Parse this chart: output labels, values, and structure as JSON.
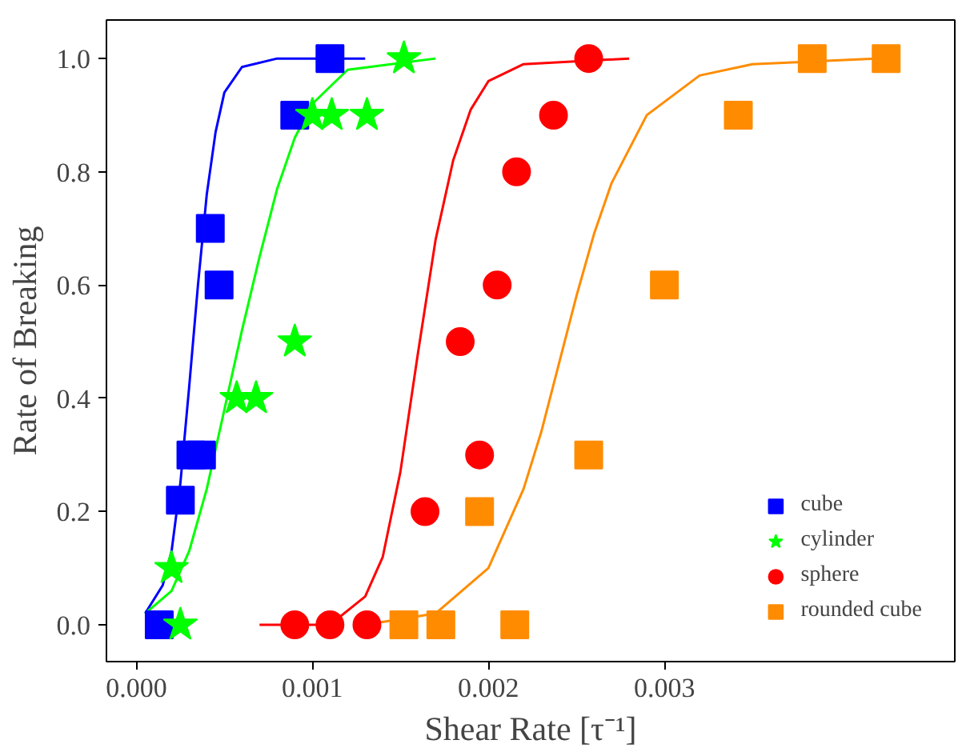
{
  "chart_data": {
    "type": "scatter",
    "xlabel": "Shear Rate [τ⁻¹]",
    "ylabel": "Rate of Breaking",
    "xlim": [
      -0.00017,
      0.00465
    ],
    "ylim": [
      -0.065,
      1.068
    ],
    "xticks": [
      {
        "value": 0,
        "label": "0.000"
      },
      {
        "value": 0.001,
        "label": "0.001"
      },
      {
        "value": 0.002,
        "label": "0.002"
      },
      {
        "value": 0.003,
        "label": "0.003"
      }
    ],
    "yticks": [
      {
        "value": 0,
        "label": "0.0"
      },
      {
        "value": 0.2,
        "label": "0.2"
      },
      {
        "value": 0.4,
        "label": "0.4"
      },
      {
        "value": 0.6,
        "label": "0.6"
      },
      {
        "value": 0.8,
        "label": "0.8"
      },
      {
        "value": 1.0,
        "label": "1.0"
      }
    ],
    "grid": false,
    "legend": "bottom right",
    "series": [
      {
        "type": "line",
        "color": "#0000ff",
        "x": [
          5e-05,
          0.00015,
          0.0002,
          0.00025,
          0.0003,
          0.00035,
          0.0004,
          0.00045,
          0.0005,
          0.0006,
          0.0008,
          0.0013
        ],
        "values": [
          0.02,
          0.07,
          0.13,
          0.25,
          0.42,
          0.6,
          0.76,
          0.87,
          0.94,
          0.985,
          1.0,
          1.0
        ]
      },
      {
        "type": "line",
        "color": "#00ff00",
        "x": [
          5e-05,
          0.0002,
          0.0003,
          0.0004,
          0.0005,
          0.0006,
          0.0007,
          0.0008,
          0.0009,
          0.001,
          0.0012,
          0.0017
        ],
        "values": [
          0.02,
          0.06,
          0.13,
          0.24,
          0.38,
          0.52,
          0.65,
          0.77,
          0.86,
          0.92,
          0.98,
          1.0
        ]
      },
      {
        "type": "line",
        "color": "#ff0000",
        "x": [
          0.0007,
          0.0011,
          0.0013,
          0.0014,
          0.0015,
          0.0016,
          0.0017,
          0.0018,
          0.0019,
          0.002,
          0.0022,
          0.0028
        ],
        "values": [
          0.0,
          0.0,
          0.05,
          0.12,
          0.27,
          0.48,
          0.68,
          0.82,
          0.91,
          0.96,
          0.99,
          1.0
        ]
      },
      {
        "type": "line",
        "color": "#ff8c00",
        "x": [
          0.0013,
          0.0017,
          0.002,
          0.0022,
          0.0023,
          0.0024,
          0.0025,
          0.0026,
          0.0027,
          0.0029,
          0.0032,
          0.0035,
          0.0042
        ],
        "values": [
          0.0,
          0.02,
          0.1,
          0.24,
          0.34,
          0.46,
          0.58,
          0.69,
          0.78,
          0.9,
          0.97,
          0.99,
          1.0
        ]
      },
      {
        "name": "cube",
        "marker": "square",
        "color": "#0000ff",
        "x": [
          0.00013,
          0.00025,
          0.00031,
          0.00037,
          0.00047,
          0.00042,
          0.0009,
          0.0011
        ],
        "values": [
          0,
          0.22,
          0.3,
          0.3,
          0.6,
          0.7,
          0.9,
          1.0
        ]
      },
      {
        "name": "cylinder",
        "marker": "star",
        "color": "#00ff00",
        "x": [
          0.00025,
          0.0002,
          0.00057,
          0.00068,
          0.0009,
          0.001,
          0.00111,
          0.00131,
          0.00152
        ],
        "values": [
          0,
          0.1,
          0.4,
          0.4,
          0.5,
          0.9,
          0.9,
          0.9,
          1.0
        ]
      },
      {
        "name": "sphere",
        "marker": "circle",
        "color": "#ff0000",
        "x": [
          0.0009,
          0.0011,
          0.00131,
          0.00164,
          0.00184,
          0.00195,
          0.00205,
          0.00216,
          0.00237,
          0.00257
        ],
        "values": [
          0,
          0,
          0,
          0.2,
          0.5,
          0.3,
          0.6,
          0.8,
          0.9,
          1.0
        ]
      },
      {
        "name": "rounded cube",
        "marker": "square",
        "color": "#ff8c00",
        "x": [
          0.00152,
          0.00173,
          0.00215,
          0.00195,
          0.00257,
          0.003,
          0.00342,
          0.00384,
          0.00426
        ],
        "values": [
          0,
          0,
          0,
          0.2,
          0.3,
          0.6,
          0.9,
          1.0,
          1.0
        ]
      }
    ]
  }
}
